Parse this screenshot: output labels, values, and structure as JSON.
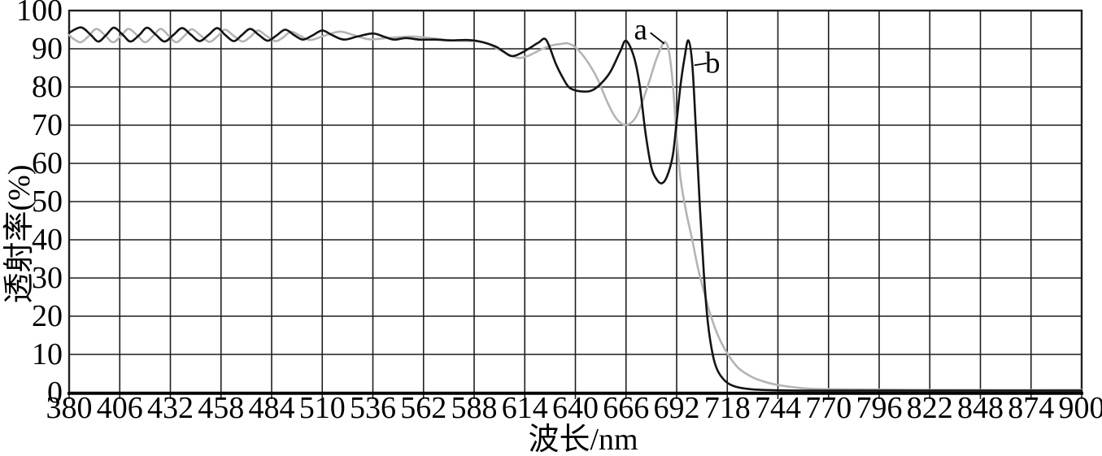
{
  "figure": {
    "y_axis": {
      "title": "透射率(%)",
      "ticks": [
        0,
        10,
        20,
        30,
        40,
        50,
        60,
        70,
        80,
        90,
        100
      ]
    },
    "x_axis": {
      "title": "波长/nm",
      "ticks": [
        380,
        406,
        432,
        458,
        484,
        510,
        536,
        562,
        588,
        614,
        640,
        666,
        692,
        718,
        744,
        770,
        796,
        822,
        848,
        874,
        900
      ]
    },
    "colors": {
      "curve_a": "#b4b4b4",
      "curve_b": "#141414",
      "grid": "#1f1f1f",
      "background": "#ffffff",
      "text": "#000000"
    },
    "annotations": [
      {
        "id": "a",
        "text": "a",
        "label_nm": 673.5,
        "label_val": 94.9,
        "tail_nm": 678.5,
        "tail_val": 94.2,
        "tip_nm": 685.7,
        "tip_val": 91.3
      },
      {
        "id": "b",
        "text": "b",
        "label_nm": 710.5,
        "label_val": 86.2,
        "tail_nm": 707.4,
        "tail_val": 86.2,
        "tip_nm": 701.1,
        "tip_val": 85.7
      }
    ]
  },
  "chart_data": {
    "type": "line",
    "title": "",
    "xlabel": "波长/nm",
    "ylabel": "透射率(%)",
    "xlim": [
      380,
      900
    ],
    "ylim": [
      0,
      100
    ],
    "x_tick_step": 26,
    "y_tick_step": 10,
    "grid": true,
    "legend_position": "none",
    "series": [
      {
        "name": "a",
        "color": "#b4b4b4",
        "points": [
          [
            380,
            93.6
          ],
          [
            382.5,
            92.5
          ],
          [
            386,
            91.7
          ],
          [
            390,
            93.3
          ],
          [
            394,
            95.2
          ],
          [
            398.5,
            93.5
          ],
          [
            402.5,
            91.7
          ],
          [
            406.5,
            93.3
          ],
          [
            410.5,
            95.2
          ],
          [
            415,
            93.5
          ],
          [
            419,
            91.7
          ],
          [
            423,
            93.3
          ],
          [
            427,
            95.2
          ],
          [
            431,
            93.5
          ],
          [
            435,
            91.7
          ],
          [
            439,
            93.3
          ],
          [
            443,
            95.1
          ],
          [
            447.5,
            93.5
          ],
          [
            452,
            91.8
          ],
          [
            456,
            93.2
          ],
          [
            460,
            95.0
          ],
          [
            464.5,
            93.4
          ],
          [
            469,
            91.9
          ],
          [
            473,
            93.1
          ],
          [
            477,
            94.8
          ],
          [
            481.5,
            93.3
          ],
          [
            486,
            92.0
          ],
          [
            490,
            93.0
          ],
          [
            494,
            94.5
          ],
          [
            499,
            93.3
          ],
          [
            504,
            92.3
          ],
          [
            511,
            93.4
          ],
          [
            519,
            94.5
          ],
          [
            526,
            93.6
          ],
          [
            534,
            92.5
          ],
          [
            543,
            92.8
          ],
          [
            551,
            93.1
          ],
          [
            557,
            93.2
          ],
          [
            564,
            92.9
          ],
          [
            572,
            92.4
          ],
          [
            580,
            92.1
          ],
          [
            588,
            92.0
          ],
          [
            594,
            91.5
          ],
          [
            600,
            90.0
          ],
          [
            606,
            88.4
          ],
          [
            611,
            87.6
          ],
          [
            616,
            88.2
          ],
          [
            622,
            89.7
          ],
          [
            628,
            90.9
          ],
          [
            633,
            91.3
          ],
          [
            636,
            91.4
          ],
          [
            640,
            90.4
          ],
          [
            645,
            87.5
          ],
          [
            651,
            82.5
          ],
          [
            656,
            76.5
          ],
          [
            660,
            72.5
          ],
          [
            664,
            70.3
          ],
          [
            668,
            70.4
          ],
          [
            672,
            73.0
          ],
          [
            677,
            80.0
          ],
          [
            681,
            86.5
          ],
          [
            684,
            90.3
          ],
          [
            686,
            91.8
          ],
          [
            688,
            89.5
          ],
          [
            690,
            81.0
          ],
          [
            692,
            67.0
          ],
          [
            694,
            56.0
          ],
          [
            697,
            47.0
          ],
          [
            700,
            40.0
          ],
          [
            703,
            32.5
          ],
          [
            706,
            26.5
          ],
          [
            709,
            21.0
          ],
          [
            712,
            16.5
          ],
          [
            715,
            13.0
          ],
          [
            719,
            9.5
          ],
          [
            724,
            6.3
          ],
          [
            731,
            4.0
          ],
          [
            738,
            2.7
          ],
          [
            744,
            2.0
          ],
          [
            756,
            1.2
          ],
          [
            770,
            0.9
          ],
          [
            830,
            0.7
          ],
          [
            900,
            0.7
          ]
        ]
      },
      {
        "name": "b",
        "color": "#141414",
        "points": [
          [
            380,
            94.2
          ],
          [
            386,
            95.6
          ],
          [
            391,
            93.7
          ],
          [
            395,
            91.9
          ],
          [
            399,
            93.6
          ],
          [
            403,
            95.5
          ],
          [
            407.5,
            93.7
          ],
          [
            411.5,
            91.9
          ],
          [
            416,
            93.6
          ],
          [
            420,
            95.5
          ],
          [
            424.5,
            93.7
          ],
          [
            429,
            91.9
          ],
          [
            433.5,
            93.6
          ],
          [
            438,
            95.4
          ],
          [
            442.5,
            93.7
          ],
          [
            447,
            92.0
          ],
          [
            451.5,
            93.6
          ],
          [
            456,
            95.4
          ],
          [
            460,
            93.7
          ],
          [
            464.5,
            92.0
          ],
          [
            468.5,
            93.5
          ],
          [
            473,
            95.2
          ],
          [
            477.5,
            93.6
          ],
          [
            482,
            92.1
          ],
          [
            486.5,
            93.5
          ],
          [
            491,
            95.0
          ],
          [
            495.5,
            93.6
          ],
          [
            500,
            92.4
          ],
          [
            505,
            93.5
          ],
          [
            510,
            94.8
          ],
          [
            515,
            93.6
          ],
          [
            521,
            92.4
          ],
          [
            528,
            93.2
          ],
          [
            536,
            94.0
          ],
          [
            542,
            93.1
          ],
          [
            547,
            92.4
          ],
          [
            553,
            92.8
          ],
          [
            560,
            92.4
          ],
          [
            568,
            92.4
          ],
          [
            576,
            92.2
          ],
          [
            584,
            92.3
          ],
          [
            591,
            91.9
          ],
          [
            599,
            90.6
          ],
          [
            603,
            89.3
          ],
          [
            607,
            88.1
          ],
          [
            611,
            88.6
          ],
          [
            616,
            90.0
          ],
          [
            621,
            91.6
          ],
          [
            625,
            92.3
          ],
          [
            630,
            86.0
          ],
          [
            634,
            82.0
          ],
          [
            637,
            79.8
          ],
          [
            642,
            78.9
          ],
          [
            648,
            79.0
          ],
          [
            653,
            80.8
          ],
          [
            658,
            84.0
          ],
          [
            663,
            89.3
          ],
          [
            666,
            92.1
          ],
          [
            670,
            88.0
          ],
          [
            673,
            80.5
          ],
          [
            676,
            68.0
          ],
          [
            679,
            59.0
          ],
          [
            682,
            55.6
          ],
          [
            684.5,
            54.8
          ],
          [
            687,
            56.5
          ],
          [
            690,
            62.0
          ],
          [
            692,
            71.0
          ],
          [
            694,
            80.5
          ],
          [
            696,
            87.5
          ],
          [
            698,
            92.2
          ],
          [
            700,
            86.0
          ],
          [
            702,
            68.0
          ],
          [
            704,
            48.0
          ],
          [
            706,
            31.0
          ],
          [
            708,
            18.5
          ],
          [
            710.5,
            10.0
          ],
          [
            713,
            5.8
          ],
          [
            717,
            3.0
          ],
          [
            722,
            1.6
          ],
          [
            730,
            0.9
          ],
          [
            744,
            0.6
          ],
          [
            770,
            0.5
          ],
          [
            830,
            0.5
          ],
          [
            900,
            0.5
          ]
        ]
      }
    ]
  }
}
